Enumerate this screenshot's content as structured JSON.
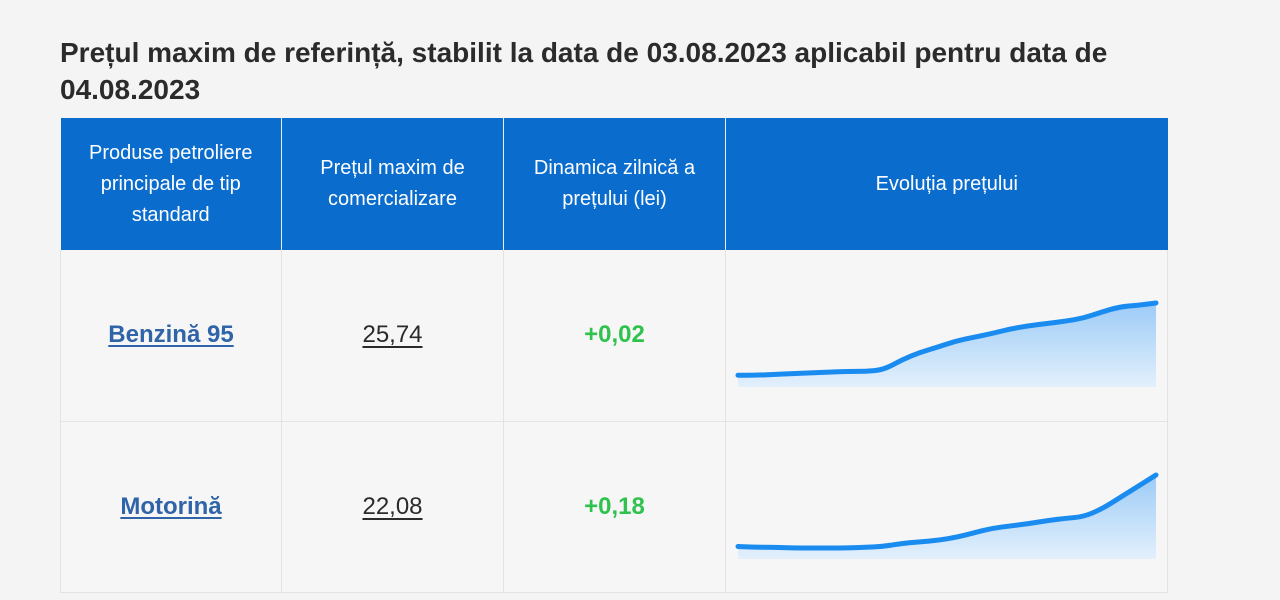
{
  "title": "Prețul maxim de referință, stabilit la data de 03.08.2023 aplicabil pentru data de 04.08.2023",
  "table": {
    "headers": [
      "Produse petroliere principale de tip standard",
      "Prețul maxim de comercializare",
      "Dinamica zilnică a prețului (lei)",
      "Evoluția prețului"
    ],
    "rows": [
      {
        "product": "Benzină 95",
        "price": "25,74",
        "change": "+0,02",
        "trend": [
          0.05,
          0.05,
          0.06,
          0.07,
          0.08,
          0.09,
          0.1,
          0.1,
          0.12,
          0.25,
          0.35,
          0.42,
          0.5,
          0.55,
          0.6,
          0.66,
          0.7,
          0.73,
          0.76,
          0.8,
          0.88,
          0.95,
          0.97,
          1.0
        ]
      },
      {
        "product": "Motorină",
        "price": "22,08",
        "change": "+0,18",
        "trend": [
          0.06,
          0.05,
          0.05,
          0.04,
          0.04,
          0.04,
          0.04,
          0.05,
          0.06,
          0.1,
          0.12,
          0.14,
          0.18,
          0.24,
          0.3,
          0.33,
          0.36,
          0.4,
          0.43,
          0.45,
          0.55,
          0.7,
          0.85,
          1.0
        ]
      }
    ]
  },
  "colors": {
    "header_bg": "#0a6ccd",
    "link": "#2f64a8",
    "change_positive": "#2fc24d",
    "spark_line": "#1a8cf0",
    "spark_fill_top": "#9ccbf7",
    "spark_fill_bottom": "#e3f0fc"
  }
}
